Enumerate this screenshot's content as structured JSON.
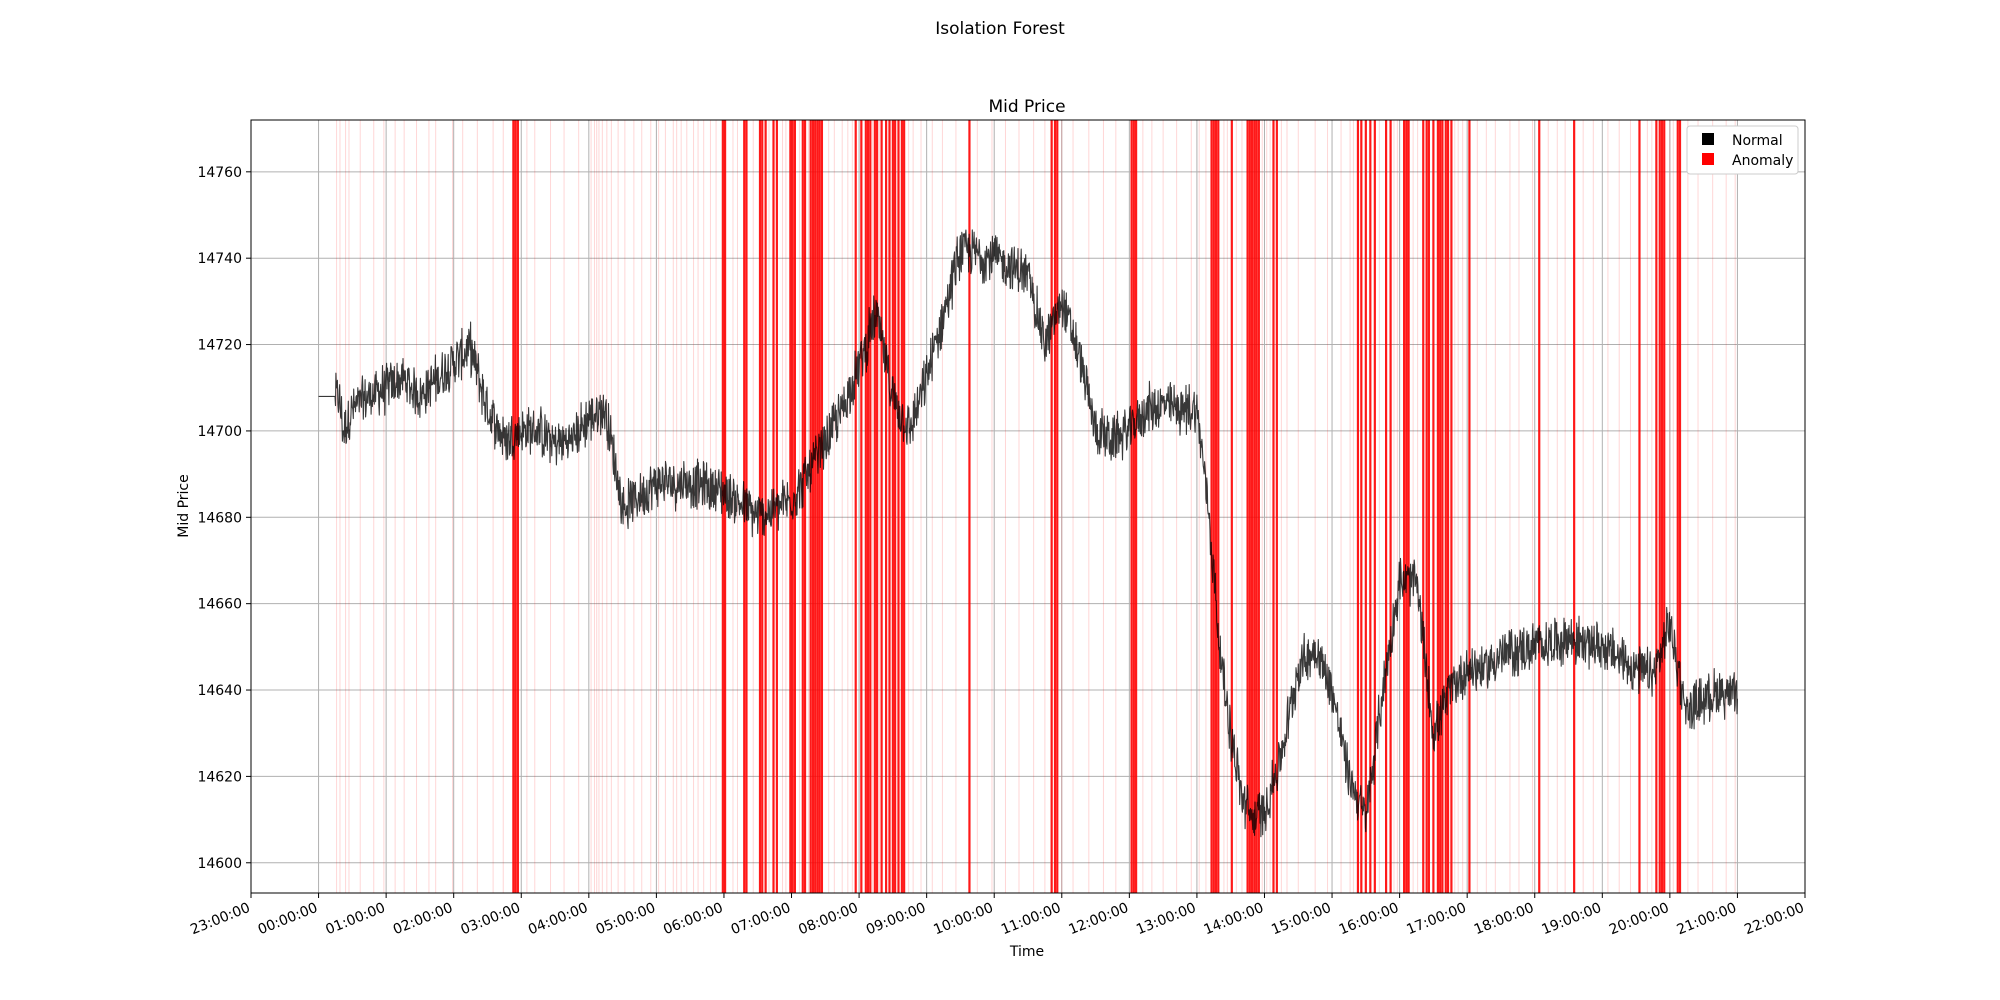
{
  "figure": {
    "suptitle": "Isolation Forest"
  },
  "chart_data": {
    "type": "line",
    "title": "Mid Price",
    "xlabel": "Time",
    "ylabel": "Mid Price",
    "xlim": [
      "23:00:00",
      "22:00:00"
    ],
    "ylim": [
      14593,
      14772
    ],
    "grid": true,
    "legend_position": "top-right",
    "x_ticks": [
      "23:00:00",
      "00:00:00",
      "01:00:00",
      "02:00:00",
      "03:00:00",
      "04:00:00",
      "05:00:00",
      "06:00:00",
      "07:00:00",
      "08:00:00",
      "09:00:00",
      "10:00:00",
      "11:00:00",
      "12:00:00",
      "13:00:00",
      "14:00:00",
      "15:00:00",
      "16:00:00",
      "17:00:00",
      "18:00:00",
      "19:00:00",
      "20:00:00",
      "21:00:00",
      "22:00:00"
    ],
    "y_ticks": [
      14600,
      14620,
      14640,
      14660,
      14680,
      14700,
      14720,
      14740,
      14760
    ],
    "series": [
      {
        "name": "Normal",
        "color": "#000000",
        "x": [
          "00:00:00",
          "00:15:00",
          "00:18:00",
          "00:22:00",
          "00:30:00",
          "00:45:00",
          "01:00:00",
          "01:15:00",
          "01:30:00",
          "01:45:00",
          "02:00:00",
          "02:15:00",
          "02:30:00",
          "02:45:00",
          "03:00:00",
          "03:15:00",
          "03:30:00",
          "03:45:00",
          "04:00:00",
          "04:15:00",
          "04:30:00",
          "05:00:00",
          "05:30:00",
          "06:00:00",
          "06:15:00",
          "06:30:00",
          "07:00:00",
          "07:15:00",
          "07:30:00",
          "07:45:00",
          "08:00:00",
          "08:15:00",
          "08:30:00",
          "08:45:00",
          "09:00:00",
          "09:30:00",
          "10:00:00",
          "10:15:00",
          "10:30:00",
          "10:45:00",
          "11:00:00",
          "11:15:00",
          "11:30:00",
          "11:45:00",
          "12:00:00",
          "12:15:00",
          "12:30:00",
          "12:45:00",
          "13:00:00",
          "13:10:00",
          "13:20:00",
          "13:30:00",
          "13:40:00",
          "13:50:00",
          "14:00:00",
          "14:15:00",
          "14:30:00",
          "14:45:00",
          "15:00:00",
          "15:15:00",
          "15:30:00",
          "15:45:00",
          "16:00:00",
          "16:15:00",
          "16:30:00",
          "16:45:00",
          "17:00:00",
          "17:15:00",
          "17:30:00",
          "18:00:00",
          "18:30:00",
          "19:00:00",
          "19:30:00",
          "19:45:00",
          "20:00:00",
          "20:15:00",
          "20:30:00",
          "20:45:00",
          "21:00:00"
        ],
        "y": [
          14708,
          14708,
          14708,
          14700,
          14705,
          14708,
          14710,
          14712,
          14708,
          14712,
          14716,
          14719,
          14705,
          14698,
          14700,
          14700,
          14697,
          14698,
          14703,
          14705,
          14682,
          14688,
          14688,
          14686,
          14683,
          14680,
          14684,
          14690,
          14697,
          14705,
          14715,
          14727,
          14708,
          14700,
          14712,
          14742,
          14740,
          14738,
          14736,
          14720,
          14730,
          14718,
          14700,
          14698,
          14700,
          14705,
          14706,
          14705,
          14705,
          14683,
          14650,
          14630,
          14615,
          14610,
          14612,
          14625,
          14645,
          14650,
          14640,
          14620,
          14610,
          14640,
          14665,
          14665,
          14630,
          14640,
          14645,
          14645,
          14648,
          14650,
          14652,
          14650,
          14645,
          14643,
          14655,
          14635,
          14638,
          14640,
          14638
        ]
      },
      {
        "name": "Anomaly",
        "color": "#ff0000",
        "heavy_x": [
          "02:53:00",
          "02:55:00",
          "02:57:00",
          "05:59:00",
          "06:01:00",
          "06:18:00",
          "06:20:00",
          "06:32:00",
          "06:34:00",
          "06:37:00",
          "06:44:00",
          "06:47:00",
          "06:59:00",
          "07:01:00",
          "07:03:00",
          "07:10:00",
          "07:12:00",
          "07:17:00",
          "07:19:00",
          "07:21:00",
          "07:23:00",
          "07:25:00",
          "07:27:00",
          "07:57:00",
          "08:02:00",
          "08:06:00",
          "08:08:00",
          "08:10:00",
          "08:14:00",
          "08:16:00",
          "08:20:00",
          "08:24:00",
          "08:27:00",
          "08:30:00",
          "08:32:00",
          "08:35:00",
          "08:38:00",
          "08:40:00",
          "09:38:00",
          "10:51:00",
          "10:54:00",
          "10:56:00",
          "12:02:00",
          "12:04:00",
          "12:06:00",
          "13:13:00",
          "13:15:00",
          "13:17:00",
          "13:19:00",
          "13:31:00",
          "13:45:00",
          "13:47:00",
          "13:49:00",
          "13:51:00",
          "13:53:00",
          "13:55:00",
          "14:08:00",
          "14:11:00",
          "15:23:00",
          "15:26:00",
          "15:30:00",
          "15:34:00",
          "15:38:00",
          "15:48:00",
          "15:52:00",
          "16:04:00",
          "16:06:00",
          "16:08:00",
          "16:21:00",
          "16:24:00",
          "16:26:00",
          "16:30:00",
          "16:34:00",
          "16:36:00",
          "16:38:00",
          "16:41:00",
          "16:43:00",
          "16:46:00",
          "17:02:00",
          "18:04:00",
          "18:35:00",
          "19:33:00",
          "19:48:00",
          "19:51:00",
          "19:53:00",
          "19:55:00",
          "20:07:00",
          "20:09:00"
        ],
        "light_x": [
          "00:16:00",
          "00:19:00",
          "00:24:00",
          "00:27:00",
          "00:37:00",
          "00:49:00",
          "00:58:00",
          "01:08:00",
          "01:16:00",
          "01:27:00",
          "01:38:00",
          "01:44:00",
          "01:59:00",
          "02:08:00",
          "02:21:00",
          "02:35:00",
          "02:44:00",
          "03:05:00",
          "03:12:00",
          "03:26:00",
          "03:38:00",
          "03:51:00",
          "04:02:00",
          "04:05:00",
          "04:07:00",
          "04:09:00",
          "04:12:00",
          "04:16:00",
          "04:20:00",
          "04:26:00",
          "04:32:00",
          "04:40:00",
          "04:47:00",
          "04:55:00",
          "05:02:00",
          "05:08:00",
          "05:15:00",
          "05:18:00",
          "05:22:00",
          "05:27:00",
          "05:33:00",
          "05:37:00",
          "05:42:00",
          "05:48:00",
          "05:53:00",
          "06:08:00",
          "06:12:00",
          "06:26:00",
          "06:40:00",
          "06:52:00",
          "06:55:00",
          "07:07:00",
          "07:15:00",
          "07:33:00",
          "07:38:00",
          "07:45:00",
          "07:50:00",
          "07:54:00",
          "08:12:00",
          "08:18:00",
          "08:44:00",
          "08:48:00",
          "08:55:00",
          "09:05:00",
          "09:14:00",
          "09:26:00",
          "09:45:00",
          "09:58:00",
          "10:10:00",
          "10:22:00",
          "10:35:00",
          "10:45:00",
          "11:00:00",
          "11:10:00",
          "11:24:00",
          "11:37:00",
          "11:48:00",
          "12:12:00",
          "12:20:00",
          "12:30:00",
          "12:42:00",
          "12:55:00",
          "13:02:00",
          "13:08:00",
          "13:24:00",
          "13:27:00",
          "13:35:00",
          "13:40:00",
          "13:58:00",
          "14:02:00",
          "14:05:00",
          "14:15:00",
          "14:20:00",
          "14:30:00",
          "14:45:00",
          "14:56:00",
          "15:08:00",
          "15:16:00",
          "15:19:00",
          "15:42:00",
          "15:55:00",
          "15:58:00",
          "16:12:00",
          "16:16:00",
          "16:49:00",
          "16:52:00",
          "16:56:00",
          "17:09:00",
          "17:17:00",
          "17:25:00",
          "17:38:00",
          "17:46:00",
          "17:58:00",
          "18:12:00",
          "18:20:00",
          "18:27:00",
          "18:43:00",
          "18:52:00",
          "19:05:00",
          "19:15:00",
          "19:25:00",
          "19:40:00",
          "19:44:00",
          "20:00:00",
          "20:03:00",
          "20:16:00",
          "20:25:00",
          "20:38:00",
          "20:50:00",
          "20:58:00"
        ]
      }
    ]
  }
}
